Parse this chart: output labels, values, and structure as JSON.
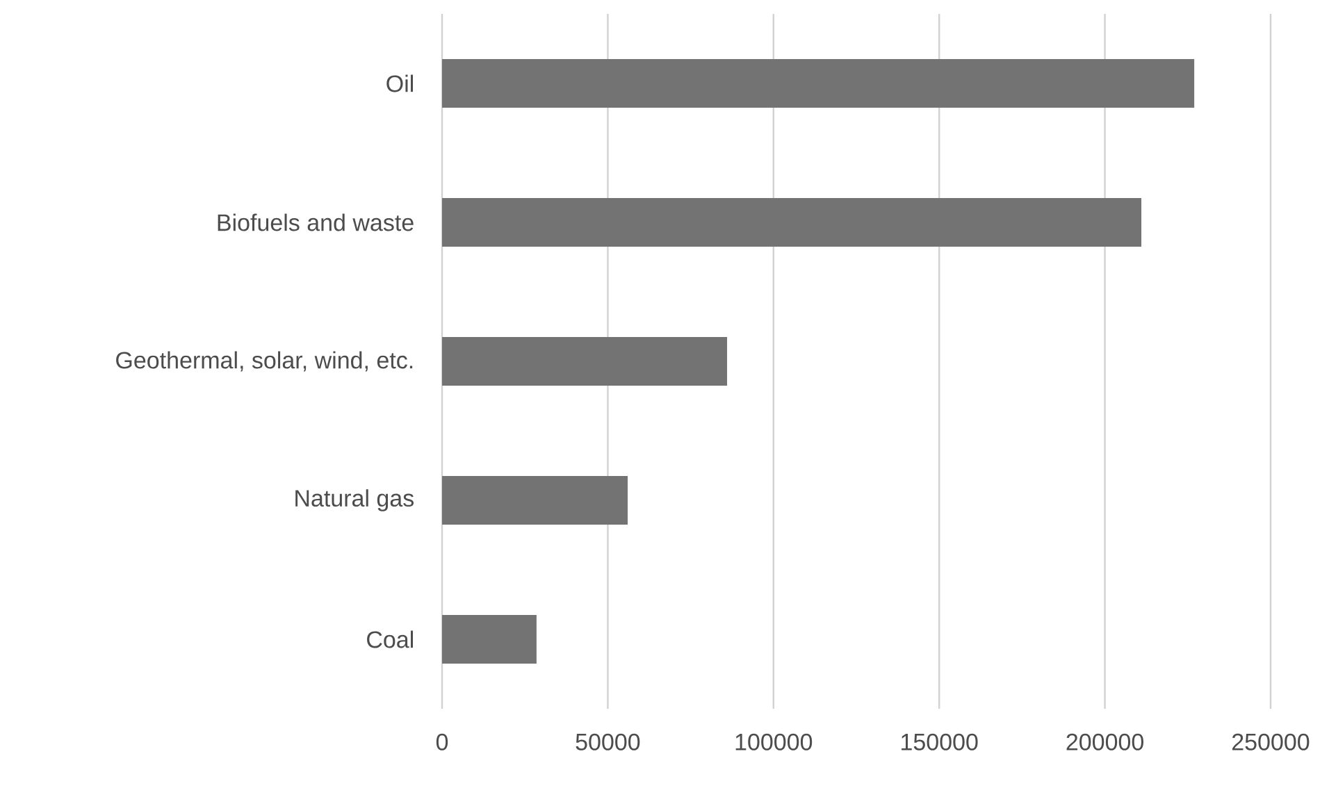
{
  "chart_data": {
    "type": "bar",
    "orientation": "horizontal",
    "categories": [
      "Oil",
      "Biofuels and waste",
      "Geothermal, solar, wind, etc.",
      "Natural gas",
      "Coal"
    ],
    "values": [
      227000,
      211000,
      86000,
      56000,
      28500
    ],
    "color": "#737373",
    "xlim": [
      0,
      250000
    ],
    "xticks": [
      0,
      50000,
      100000,
      150000,
      200000,
      250000
    ],
    "grid": "x"
  }
}
